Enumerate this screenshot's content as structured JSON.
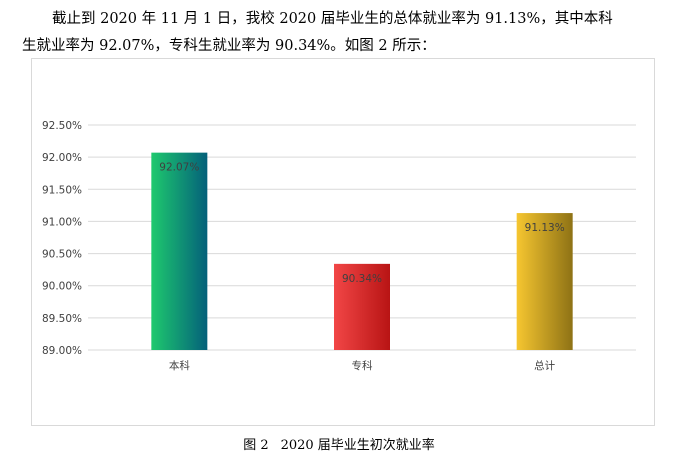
{
  "paragraph": {
    "line1": "截止到 2020 年 11 月 1 日，我校 2020 届毕业生的总体就业率为 91.13%，其中本科",
    "line2": "生就业率为 92.07%，专科生就业率为 90.34%。如图 2 所示："
  },
  "caption": {
    "number": "图 2",
    "text": "2020 届毕业生初次就业率"
  },
  "colors": {
    "bar_gradients": [
      [
        "#1ec96e",
        "#04607a"
      ],
      [
        "#f24646",
        "#b81414"
      ],
      [
        "#f6c630",
        "#8e7215"
      ]
    ],
    "grid": "#d9d9d9",
    "text": "#404040"
  },
  "chart_data": {
    "type": "bar",
    "categories": [
      "本科",
      "专科",
      "总计"
    ],
    "values": [
      92.07,
      90.34,
      91.13
    ],
    "data_labels": [
      "92.07%",
      "90.34%",
      "91.13%"
    ],
    "ylim": [
      89.0,
      92.5
    ],
    "yticks": [
      89.0,
      89.5,
      90.0,
      90.5,
      91.0,
      91.5,
      92.0,
      92.5
    ],
    "ytick_labels": [
      "89.00%",
      "89.50%",
      "90.00%",
      "90.50%",
      "91.00%",
      "91.50%",
      "92.00%",
      "92.50%"
    ],
    "grid": true,
    "legend": "none",
    "title": "",
    "xlabel": "",
    "ylabel": ""
  }
}
